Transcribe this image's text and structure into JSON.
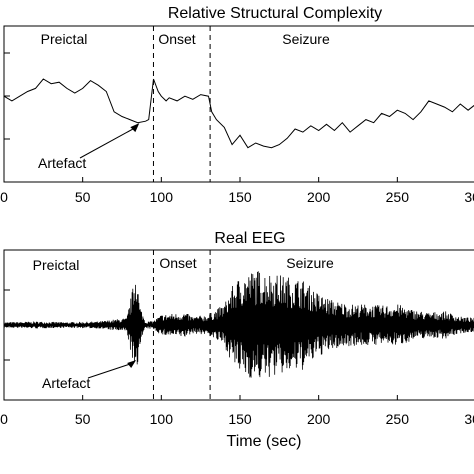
{
  "chart_data": [
    {
      "type": "line",
      "title": "Relative Structural Complexity",
      "xlabel": "",
      "ylabel": "",
      "xlim": [
        0,
        300
      ],
      "xticks": [
        "0",
        "50",
        "100",
        "150",
        "200",
        "250",
        "300"
      ],
      "phase_markers": [
        95,
        131
      ],
      "regions": [
        "Preictal",
        "Onset",
        "Seizure"
      ],
      "annotation": {
        "text": "Artefact",
        "points_to_x": 86
      },
      "series": [
        {
          "x": [
            0,
            5,
            10,
            15,
            20,
            25,
            30,
            35,
            40,
            45,
            50,
            55,
            60,
            65,
            70,
            75,
            80,
            85,
            90,
            92,
            95,
            98,
            100,
            103,
            105,
            110,
            115,
            120,
            125,
            130,
            132,
            135,
            140,
            145,
            150,
            155,
            160,
            165,
            170,
            175,
            180,
            185,
            190,
            195,
            200,
            205,
            210,
            215,
            220,
            225,
            230,
            235,
            240,
            245,
            250,
            255,
            260,
            265,
            270,
            275,
            280,
            285,
            290,
            295,
            300
          ],
          "values": [
            0.55,
            0.52,
            0.55,
            0.58,
            0.6,
            0.66,
            0.63,
            0.64,
            0.6,
            0.57,
            0.6,
            0.65,
            0.62,
            0.58,
            0.45,
            0.42,
            0.4,
            0.38,
            0.39,
            0.4,
            0.66,
            0.58,
            0.55,
            0.52,
            0.54,
            0.52,
            0.55,
            0.53,
            0.56,
            0.55,
            0.45,
            0.4,
            0.35,
            0.24,
            0.3,
            0.22,
            0.25,
            0.23,
            0.22,
            0.24,
            0.28,
            0.34,
            0.32,
            0.36,
            0.33,
            0.37,
            0.33,
            0.38,
            0.32,
            0.36,
            0.4,
            0.38,
            0.44,
            0.42,
            0.46,
            0.44,
            0.4,
            0.45,
            0.52,
            0.5,
            0.48,
            0.45,
            0.5,
            0.46,
            0.5
          ]
        }
      ]
    },
    {
      "type": "line",
      "title": "Real EEG",
      "xlabel": "Time (sec)",
      "ylabel": "",
      "xlim": [
        0,
        300
      ],
      "xticks": [
        "0",
        "50",
        "100",
        "150",
        "200",
        "250",
        "300"
      ],
      "phase_markers": [
        95,
        131
      ],
      "regions": [
        "Preictal",
        "Onset",
        "Seizure"
      ],
      "annotation": {
        "text": "Artefact",
        "points_to_x": 84
      },
      "series": [
        {
          "name": "",
          "envelope": {
            "x": [
              0,
              20,
              40,
              60,
              78,
              82,
              84,
              86,
              90,
              95,
              100,
              115,
              120,
              130,
              140,
              145,
              150,
              160,
              170,
              180,
              190,
              195,
              200,
              210,
              220,
              230,
              240,
              250,
              260,
              270,
              280,
              290,
              300
            ],
            "amplitude": [
              0.04,
              0.05,
              0.04,
              0.05,
              0.1,
              0.55,
              0.95,
              0.3,
              0.05,
              0.06,
              0.15,
              0.18,
              0.12,
              0.15,
              0.3,
              0.55,
              0.7,
              0.8,
              0.75,
              0.7,
              0.65,
              0.55,
              0.45,
              0.35,
              0.3,
              0.3,
              0.28,
              0.3,
              0.22,
              0.18,
              0.2,
              0.12,
              0.1
            ]
          }
        }
      ]
    }
  ]
}
